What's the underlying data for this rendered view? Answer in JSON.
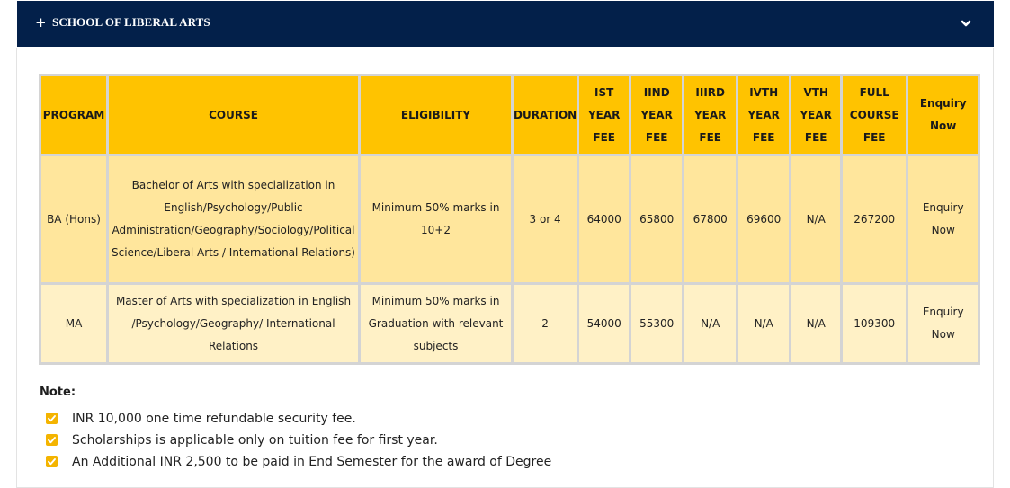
{
  "accordion": {
    "expand_symbol": "+",
    "title": "SCHOOL OF LIBERAL ARTS",
    "toggle_icon": "chevron-down-icon"
  },
  "table": {
    "headers": [
      [
        "PROGRAM"
      ],
      [
        "COURSE"
      ],
      [
        "ELIGIBILITY"
      ],
      [
        "DURATION"
      ],
      [
        "IST",
        "YEAR",
        "FEE"
      ],
      [
        "IIND",
        "YEAR",
        "FEE"
      ],
      [
        "IIIRD",
        "YEAR",
        "FEE"
      ],
      [
        "IVTH",
        "YEAR",
        "FEE"
      ],
      [
        "VTH",
        "YEAR",
        "FEE"
      ],
      [
        "FULL",
        "COURSE",
        "FEE"
      ],
      [
        "Enquiry",
        "Now"
      ]
    ],
    "rows": [
      {
        "program": [
          "BA (Hons)"
        ],
        "course": [
          "Bachelor of Arts with specialization in",
          "English/Psychology/Public",
          "Administration/Geography/Sociology/Political",
          "Science/Liberal Arts / International Relations)"
        ],
        "eligibility": [
          "Minimum 50% marks in",
          "10+2"
        ],
        "duration": [
          "3 or 4"
        ],
        "year1": [
          "64000"
        ],
        "year2": [
          "65800"
        ],
        "year3": [
          "67800"
        ],
        "year4": [
          "69600"
        ],
        "year5": [
          "N/A"
        ],
        "full": [
          "267200"
        ],
        "enquiry": [
          "Enquiry",
          "Now"
        ]
      },
      {
        "program": [
          "MA"
        ],
        "course": [
          "Master of Arts with specialization in English",
          "/Psychology/Geography/ International",
          "Relations"
        ],
        "eligibility": [
          "Minimum 50% marks in",
          "Graduation with relevant",
          "subjects"
        ],
        "duration": [
          "2"
        ],
        "year1": [
          "54000"
        ],
        "year2": [
          "55300"
        ],
        "year3": [
          "N/A"
        ],
        "year4": [
          "N/A"
        ],
        "year5": [
          "N/A"
        ],
        "full": [
          "109300"
        ],
        "enquiry": [
          "Enquiry",
          "Now"
        ]
      }
    ]
  },
  "notes": {
    "title": "Note:",
    "check_icon": "checkbox-checked-icon",
    "check_color": "#f4b400",
    "items": [
      "INR 10,000 one time refundable security fee.",
      "Scholarships is applicable only on tuition fee for first year.",
      "An Additional INR 2,500 to be paid in End Semester for the award of Degree"
    ]
  },
  "colors": {
    "header_bg": "#03204a",
    "table_header": "#ffc300",
    "row_ba": "#ffe69c",
    "row_ma": "#fff1c6"
  }
}
